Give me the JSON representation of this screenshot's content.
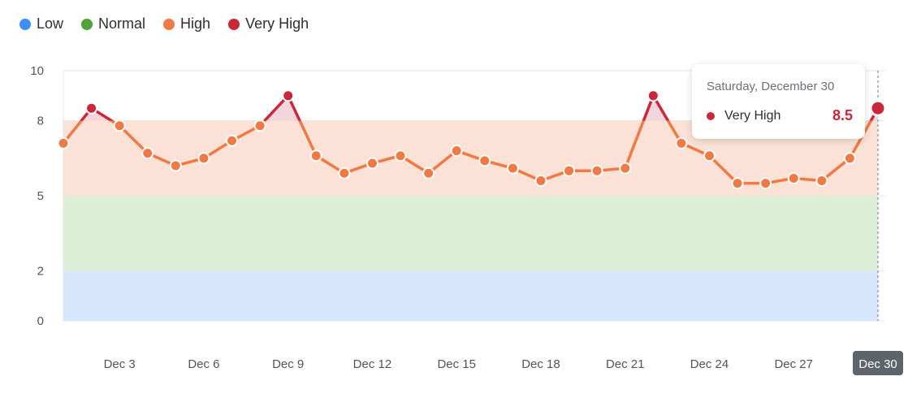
{
  "legend": [
    {
      "label": "Low",
      "color": "#3d8ff2"
    },
    {
      "label": "Normal",
      "color": "#4fa33a"
    },
    {
      "label": "High",
      "color": "#f07a44"
    },
    {
      "label": "Very High",
      "color": "#c8283a"
    }
  ],
  "tooltip": {
    "title": "Saturday, December 30",
    "series_label": "Very High",
    "value": "8.5",
    "color": "#c8283a"
  },
  "chart_data": {
    "type": "area",
    "x": [
      "Dec 1",
      "Dec 2",
      "Dec 3",
      "Dec 4",
      "Dec 5",
      "Dec 6",
      "Dec 7",
      "Dec 8",
      "Dec 9",
      "Dec 10",
      "Dec 11",
      "Dec 12",
      "Dec 13",
      "Dec 14",
      "Dec 15",
      "Dec 16",
      "Dec 17",
      "Dec 18",
      "Dec 19",
      "Dec 20",
      "Dec 21",
      "Dec 22",
      "Dec 23",
      "Dec 24",
      "Dec 25",
      "Dec 26",
      "Dec 27",
      "Dec 28",
      "Dec 29",
      "Dec 30"
    ],
    "values": [
      7.1,
      8.5,
      7.8,
      6.7,
      6.2,
      6.5,
      7.2,
      7.8,
      9.0,
      6.6,
      5.9,
      6.3,
      6.6,
      5.9,
      6.8,
      6.4,
      6.1,
      5.6,
      6.0,
      6.0,
      6.1,
      9.0,
      7.1,
      6.6,
      5.5,
      5.5,
      5.7,
      5.6,
      6.5,
      8.5
    ],
    "x_tick_labels": [
      "Dec 3",
      "Dec 6",
      "Dec 9",
      "Dec 12",
      "Dec 15",
      "Dec 18",
      "Dec 21",
      "Dec 24",
      "Dec 27",
      "Dec 30"
    ],
    "y_tick_labels": [
      "0",
      "2",
      "5",
      "8",
      "10"
    ],
    "ylim": [
      0,
      10
    ],
    "bands": [
      {
        "name": "Low",
        "from": 0,
        "to": 2,
        "color": "#d6e6fb"
      },
      {
        "name": "Normal",
        "from": 2,
        "to": 5,
        "color": "#ddeed6"
      },
      {
        "name": "High",
        "from": 5,
        "to": 8,
        "color": "#fbe1d6"
      },
      {
        "name": "Very High",
        "from": 8,
        "to": 10,
        "color": "#f3d6dc"
      }
    ],
    "threshold_very_high": 8,
    "line_color_high": "#f07a44",
    "line_color_very_high": "#c8283a",
    "highlighted_x": "Dec 30",
    "grid": true,
    "legend_position": "top-left"
  }
}
